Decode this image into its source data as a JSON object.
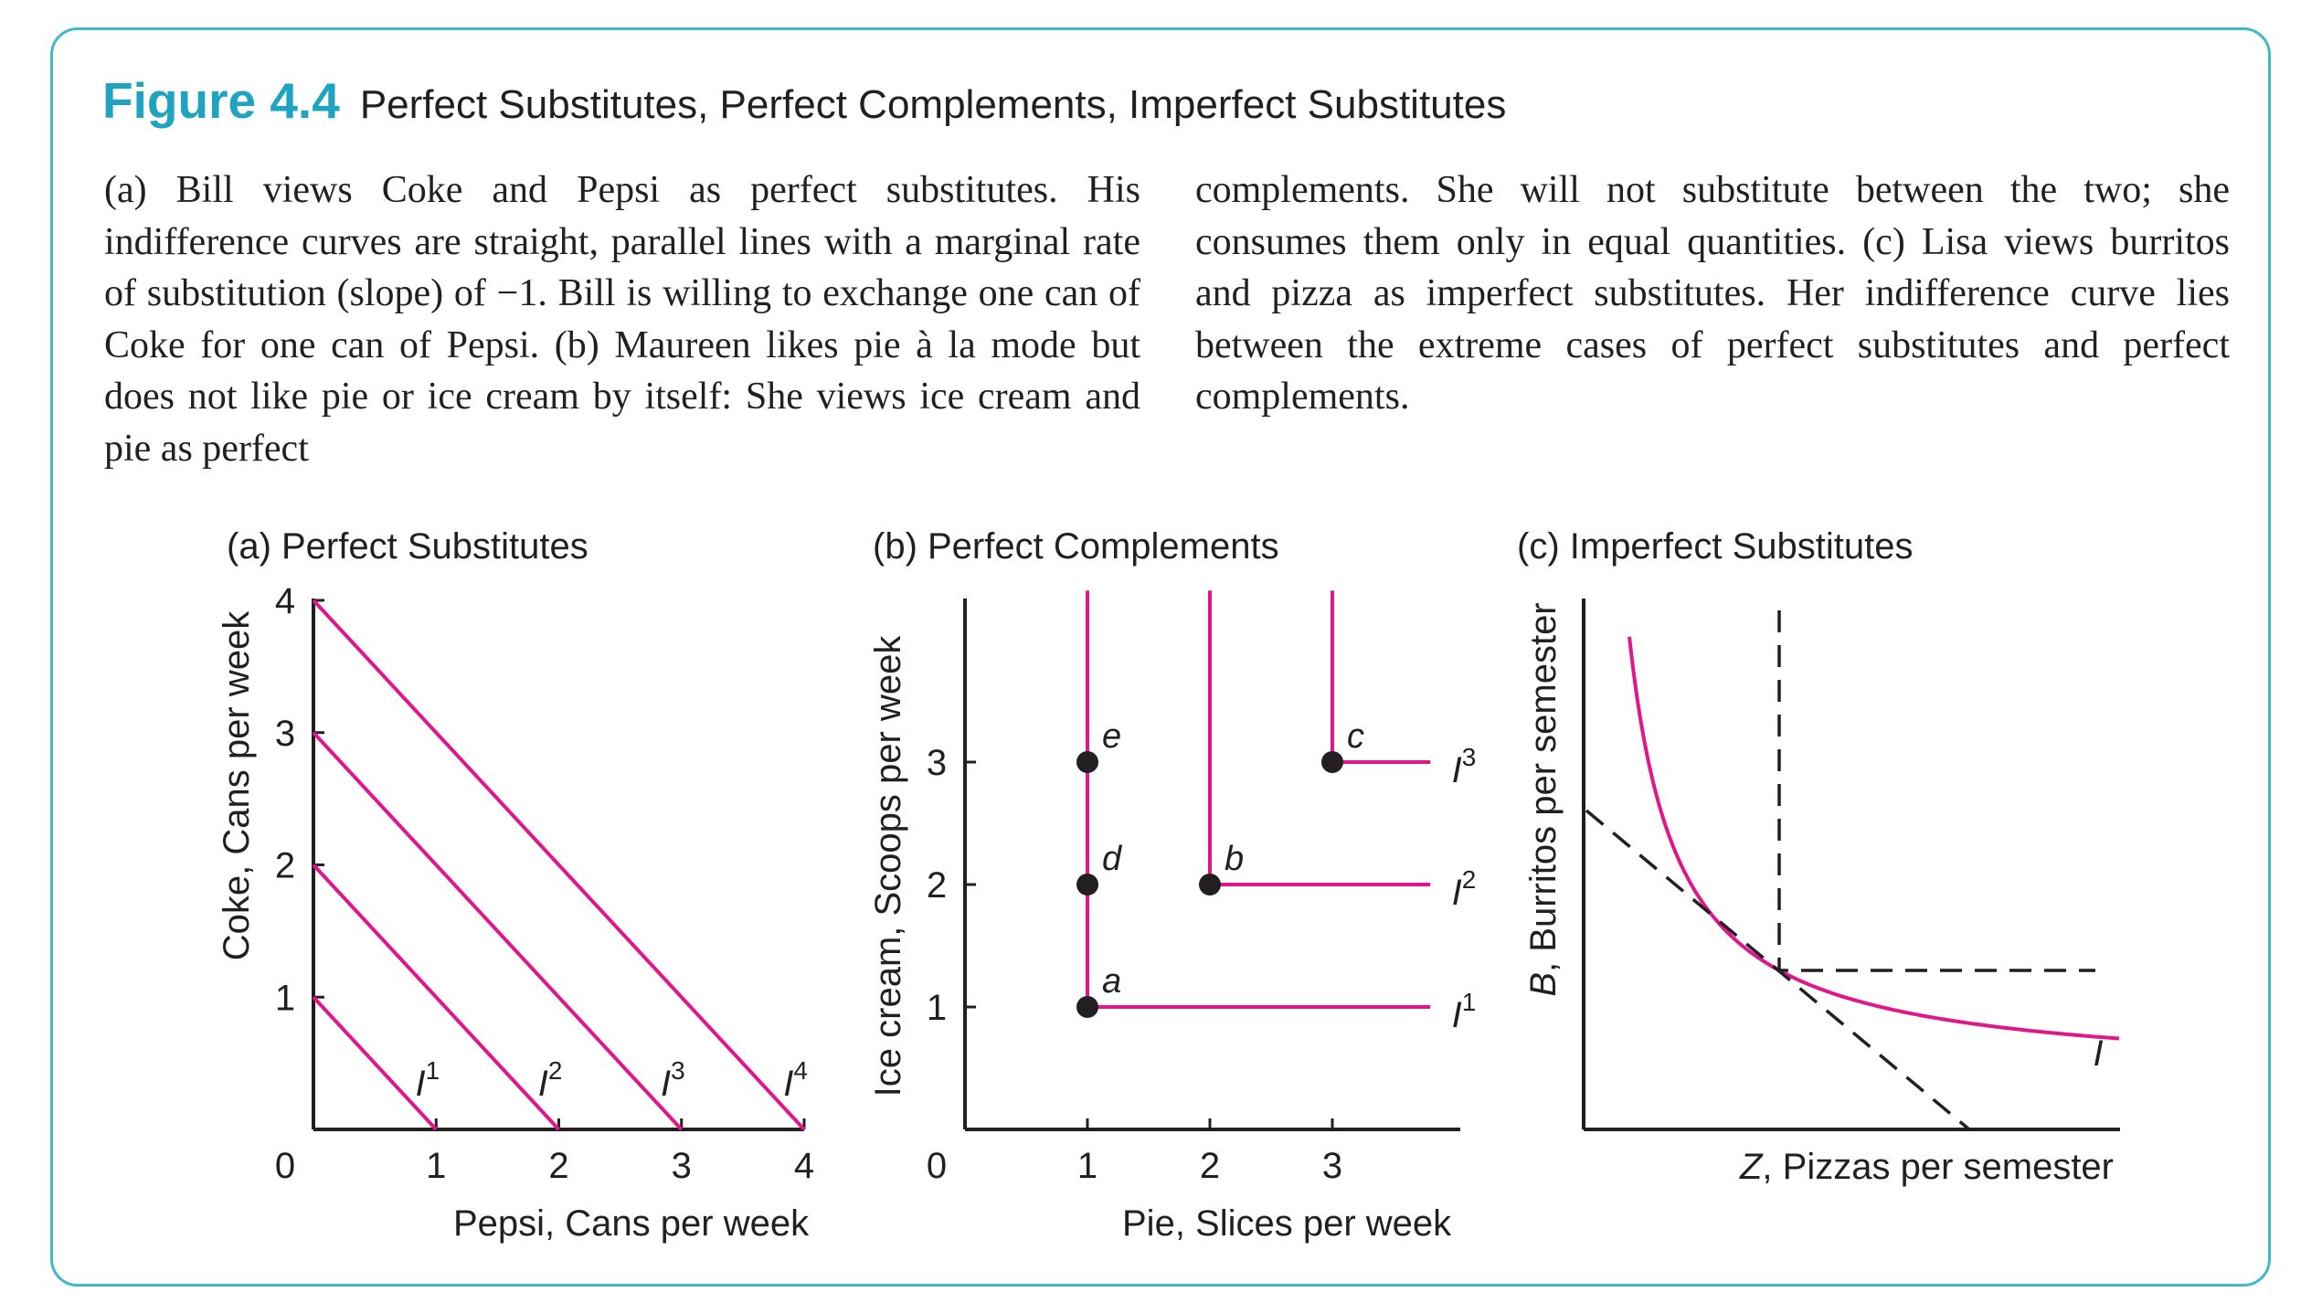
{
  "figure": {
    "label": "Figure 4.4",
    "title": "Perfect Substitutes, Perfect Complements, Imperfect Substitutes"
  },
  "caption": {
    "left": "(a) Bill views Coke and Pepsi as perfect substitutes. His indifference curves are straight, parallel lines with a marginal rate of substitution (slope) of −1. Bill is willing to exchange one can of Coke for one can of Pepsi. (b) Maureen likes pie à la mode but does not like pie or ice cream by itself: She views ice cream and pie as perfect",
    "right": "complements. She will not substitute between the two; she consumes them only in equal quantities. (c) Lisa views burritos and pizza as imperfect substitutes. Her indifference curve lies between the extreme cases of perfect substitutes and perfect complements."
  },
  "colors": {
    "accent": "#1ea3c0",
    "border": "#3fb8c9",
    "curve": "#e0168a",
    "ink": "#231f20"
  },
  "chart_data": [
    {
      "id": "a",
      "type": "line",
      "title": "(a) Perfect Substitutes",
      "xlabel": "Pepsi, Cans per week",
      "ylabel": "Coke, Cans per week",
      "xlim": [
        0,
        4.15
      ],
      "ylim": [
        0,
        4.45
      ],
      "origin_label": "0",
      "xticks": [
        1,
        2,
        3,
        4
      ],
      "xtick_labels": [
        "1",
        "2",
        "3",
        "4"
      ],
      "yticks": [
        1,
        2,
        3,
        4
      ],
      "ytick_labels": [
        "1",
        "2",
        "3",
        "4"
      ],
      "series": [
        {
          "name": "I1",
          "base": "I",
          "sup": "1",
          "points": [
            [
              0,
              1
            ],
            [
              1,
              0
            ]
          ],
          "label_at": [
            0.93,
            0.38
          ]
        },
        {
          "name": "I2",
          "base": "I",
          "sup": "2",
          "points": [
            [
              0,
              2
            ],
            [
              2,
              0
            ]
          ],
          "label_at": [
            1.93,
            0.38
          ]
        },
        {
          "name": "I3",
          "base": "I",
          "sup": "3",
          "points": [
            [
              0,
              3
            ],
            [
              3,
              0
            ]
          ],
          "label_at": [
            2.93,
            0.38
          ]
        },
        {
          "name": "I4",
          "base": "I",
          "sup": "4",
          "points": [
            [
              0,
              4
            ],
            [
              4,
              0
            ]
          ],
          "label_at": [
            3.93,
            0.38
          ]
        }
      ]
    },
    {
      "id": "b",
      "type": "line",
      "title": "(b) Perfect Complements",
      "xlabel": "Pie, Slices per week",
      "ylabel": "Ice cream, Scoops per week",
      "xlim": [
        0,
        4.0
      ],
      "ylim": [
        0,
        4.4
      ],
      "origin_label": "0",
      "xticks": [
        1,
        2,
        3
      ],
      "xtick_labels": [
        "1",
        "2",
        "3"
      ],
      "yticks": [
        1,
        2,
        3
      ],
      "ytick_labels": [
        "1",
        "2",
        "3"
      ],
      "series": [
        {
          "name": "I1",
          "base": "I",
          "sup": "1",
          "points": [
            [
              1,
              4.4
            ],
            [
              1,
              1
            ],
            [
              3.8,
              1
            ]
          ],
          "label_at": [
            3.9,
            1
          ]
        },
        {
          "name": "I2",
          "base": "I",
          "sup": "2",
          "points": [
            [
              2,
              4.4
            ],
            [
              2,
              2
            ],
            [
              3.8,
              2
            ]
          ],
          "label_at": [
            3.9,
            2
          ]
        },
        {
          "name": "I3",
          "base": "I",
          "sup": "3",
          "points": [
            [
              3,
              4.4
            ],
            [
              3,
              3
            ],
            [
              3.8,
              3
            ]
          ],
          "label_at": [
            3.9,
            3
          ]
        }
      ],
      "points": [
        {
          "label": "a",
          "x": 1,
          "y": 1
        },
        {
          "label": "d",
          "x": 1,
          "y": 2
        },
        {
          "label": "e",
          "x": 1,
          "y": 3
        },
        {
          "label": "b",
          "x": 2,
          "y": 2
        },
        {
          "label": "c",
          "x": 3,
          "y": 3
        }
      ]
    },
    {
      "id": "c",
      "type": "line",
      "title": "(c) Imperfect Substitutes",
      "xlabel_italic": "Z",
      "xlabel_rest": ", Pizzas per semester",
      "ylabel_italic": "B",
      "ylabel_rest": ", Burritos per semester",
      "axis_ticks": false,
      "curve": {
        "name": "I",
        "type": "convex indifference curve"
      },
      "reference_lines": [
        {
          "style": "dashed",
          "meaning": "perfect substitutes (straight line tangent to I)"
        },
        {
          "style": "dashed",
          "meaning": "perfect complements (right angle at tangency)"
        }
      ]
    }
  ]
}
